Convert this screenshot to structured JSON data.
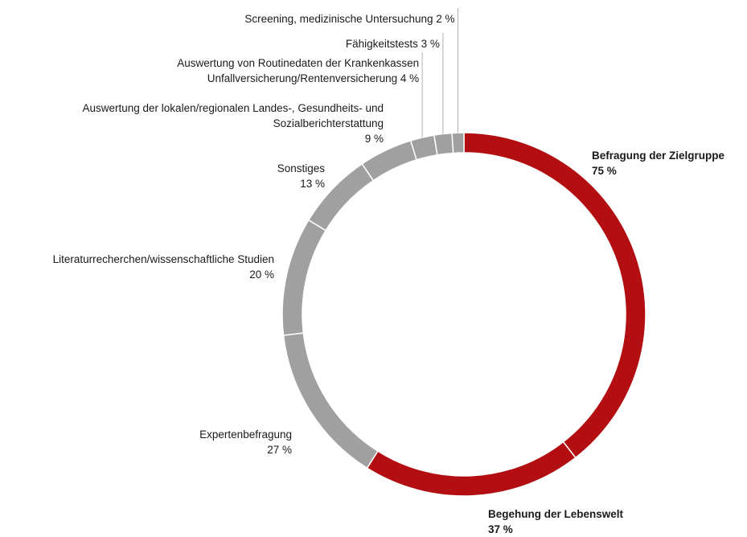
{
  "chart_data": {
    "type": "donut",
    "categories": [
      "Befragung der Zielgruppe",
      "Begehung der Lebenswelt",
      "Expertenbefragung",
      "Literaturrecherchen/wissenschaftliche Studien",
      "Sonstiges",
      "Auswertung der lokalen/regionalen Landes-, Gesundheits- und\nSozialberichterstattung",
      "Auswertung von Routinedaten der Krankenkassen\nUnfallversicherung/Rentenversicherung",
      "Fähigkeitstests",
      "Screening, medizinische Untersuchung"
    ],
    "values": [
      75,
      37,
      27,
      20,
      13,
      9,
      4,
      3,
      2
    ],
    "value_labels": [
      "75 %",
      "37 %",
      "27 %",
      "20 %",
      "13 %",
      "9 %",
      "4 %",
      "3 %",
      "2 %"
    ],
    "colors": [
      "#b30f12",
      "#b30f12",
      "#a0a0a0",
      "#a0a0a0",
      "#a0a0a0",
      "#a0a0a0",
      "#a0a0a0",
      "#a0a0a0",
      "#a0a0a0"
    ]
  }
}
